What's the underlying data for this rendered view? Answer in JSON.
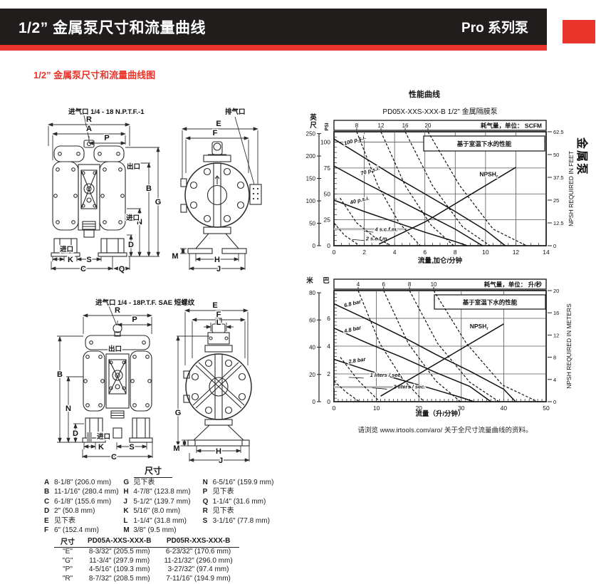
{
  "header": {
    "title_left": "1/2” 金属泵尺寸和流量曲线",
    "title_right": "Pro 系列泵"
  },
  "side_tab": {
    "label": "金属泵"
  },
  "page": {
    "section_heading": "1/2” 金属泵尺寸和流量曲线图"
  },
  "accent_colors": {
    "red": "#e8342a",
    "black_bar": "#211d1d"
  },
  "drawings": {
    "air_inlet_npt": "进气口 1/4 - 18 N.P.T.F.-1",
    "air_inlet_sae": "进气口 1/4 - 18P.T.F. SAE 短螺纹",
    "exhaust": "排气口",
    "outlet": "出口",
    "inlet": "进口",
    "letters": {
      "A": "A",
      "B": "B",
      "C": "C",
      "D": "D",
      "E": "E",
      "F": "F",
      "G": "G",
      "H": "H",
      "J": "J",
      "K": "K",
      "L": "L",
      "M": "M",
      "N": "N",
      "P": "P",
      "Q": "Q",
      "R": "R",
      "S": "S"
    }
  },
  "chart_data": [
    {
      "type": "line",
      "title": "性能曲线",
      "subtitle": "PD05X-XXS-XXX-B  1/2” 金属隔膜泵",
      "legend": "基于室温下水的性能",
      "x_axis": {
        "label": "流量,加仑/分钟",
        "min": 0,
        "max": 14,
        "ticks": [
          0,
          2,
          4,
          6,
          8,
          10,
          12,
          14
        ]
      },
      "y_left": {
        "label": "PSI",
        "min": 0,
        "max": 110,
        "ticks": [
          0,
          25,
          50,
          75,
          100
        ]
      },
      "y_outer": {
        "label": "英尺",
        "ticks": [
          0,
          50,
          100,
          150,
          200,
          250
        ],
        "per_main": 2.31
      },
      "y_right": {
        "label": "NPSH REQUIRED IN FEET",
        "min": 0,
        "max": 62.5,
        "ticks": [
          0,
          12.5,
          25,
          37.5,
          50,
          62.5
        ]
      },
      "top_axis": {
        "label": "耗气量，单位： SCFM",
        "ticks": [
          8,
          12,
          16,
          20
        ],
        "tick_x": [
          1.5,
          3.1,
          4.7,
          6.2
        ]
      },
      "ref_line": {
        "y": 16,
        "x0": 0,
        "x1": 4.8
      },
      "series": [
        {
          "id": "p100",
          "label": "100 p.s.i.",
          "style": "solid",
          "points": [
            [
              0,
              103
            ],
            [
              2,
              85
            ],
            [
              4,
              67
            ],
            [
              6,
              50
            ],
            [
              8,
              33
            ],
            [
              10,
              15
            ],
            [
              11.3,
              0
            ]
          ],
          "label_at": [
            0.7,
            97
          ]
        },
        {
          "id": "p70",
          "label": "70 p.s.i.",
          "style": "solid",
          "points": [
            [
              0,
              77
            ],
            [
              2,
              61
            ],
            [
              4,
              46
            ],
            [
              6,
              31
            ],
            [
              8,
              16
            ],
            [
              9.8,
              0
            ]
          ],
          "label_at": [
            1.8,
            68
          ]
        },
        {
          "id": "p40",
          "label": "40 p.s.i.",
          "style": "solid",
          "points": [
            [
              0,
              44
            ],
            [
              2,
              33
            ],
            [
              4,
              23
            ],
            [
              6,
              13
            ],
            [
              8,
              4
            ],
            [
              8.8,
              0
            ]
          ],
          "label_at": [
            1.1,
            40
          ]
        },
        {
          "id": "scfm2",
          "label": "2 s.c.f.m.",
          "style": "dashed",
          "points": [
            [
              0,
              22
            ],
            [
              0.7,
              10
            ],
            [
              1.7,
              0
            ]
          ],
          "label_at": [
            2.1,
            5
          ],
          "leader": [
            [
              2.0,
              5
            ],
            [
              1.2,
              6
            ]
          ]
        },
        {
          "id": "scfm4",
          "label": "4 s.c.f.m.",
          "style": "dashed",
          "points": [
            [
              0.4,
              46
            ],
            [
              1.5,
              22
            ],
            [
              2.7,
              8
            ],
            [
              3.8,
              0
            ]
          ],
          "label_at": [
            2.7,
            14
          ],
          "leader": [
            [
              2.6,
              13
            ],
            [
              2.0,
              14
            ]
          ]
        },
        {
          "id": "scfm8",
          "style": "dashed",
          "points": [
            [
              1.5,
              110
            ],
            [
              2.9,
              58
            ],
            [
              4.3,
              22
            ],
            [
              5.7,
              0
            ]
          ]
        },
        {
          "id": "scfm12",
          "style": "dashed",
          "points": [
            [
              3.1,
              110
            ],
            [
              4.7,
              58
            ],
            [
              6.4,
              20
            ],
            [
              7.9,
              0
            ]
          ]
        },
        {
          "id": "scfm16",
          "style": "dashed",
          "points": [
            [
              4.7,
              110
            ],
            [
              6.5,
              58
            ],
            [
              8.5,
              18
            ],
            [
              10.3,
              0
            ]
          ]
        },
        {
          "id": "scfm20",
          "style": "dashed",
          "points": [
            [
              6.2,
              110
            ],
            [
              8.3,
              58
            ],
            [
              10.5,
              16
            ],
            [
              12.7,
              0
            ]
          ]
        },
        {
          "id": "npshr",
          "label": "NPSH",
          "sub": "r",
          "style": "solid",
          "axis": "right",
          "points": [
            [
              3,
              1
            ],
            [
              6,
              13
            ],
            [
              9,
              28
            ],
            [
              12,
              43
            ]
          ],
          "label_at": [
            9.6,
            38
          ]
        }
      ]
    },
    {
      "type": "line",
      "legend": "基于室温下水的性能",
      "x_axis": {
        "label": "流量（升/分钟）",
        "min": 0,
        "max": 50,
        "ticks": [
          0,
          10,
          20,
          30,
          40,
          50
        ]
      },
      "y_left": {
        "label": "巴",
        "min": 0,
        "max": 8,
        "ticks": [
          0,
          2,
          4,
          6
        ]
      },
      "y_outer": {
        "label": "米",
        "ticks": [
          0,
          20,
          40,
          60,
          80
        ],
        "per_main": 10.2
      },
      "y_right": {
        "label": "NPSH REQUIRED IN METERS",
        "min": 0,
        "max": 20,
        "ticks": [
          0,
          4,
          8,
          12,
          16,
          20
        ]
      },
      "top_axis": {
        "label": "耗气量，单位： 升/秒",
        "ticks": [
          4,
          6,
          8,
          10
        ],
        "tick_x": [
          5.7,
          11.7,
          17.8,
          23.5
        ]
      },
      "ref_line": {
        "y": 1.05,
        "x0": 0,
        "x1": 18
      },
      "series": [
        {
          "id": "bar68",
          "label": "6.8 bar",
          "style": "solid",
          "points": [
            [
              0,
              7.05
            ],
            [
              8,
              5.9
            ],
            [
              16,
              4.7
            ],
            [
              24,
              3.4
            ],
            [
              32,
              2.2
            ],
            [
              40,
              0.9
            ],
            [
              42.8,
              0
            ]
          ],
          "label_at": [
            2.5,
            6.8
          ]
        },
        {
          "id": "bar48",
          "label": "4.8 bar",
          "style": "solid",
          "points": [
            [
              0,
              5.3
            ],
            [
              8,
              4.2
            ],
            [
              16,
              3.2
            ],
            [
              24,
              2.1
            ],
            [
              32,
              1.1
            ],
            [
              37,
              0
            ]
          ],
          "label_at": [
            2.5,
            4.95
          ]
        },
        {
          "id": "bar28",
          "label": "2.8 bar",
          "style": "solid",
          "points": [
            [
              0,
              3.05
            ],
            [
              8,
              2.25
            ],
            [
              16,
              1.55
            ],
            [
              24,
              0.85
            ],
            [
              30,
              0.3
            ],
            [
              33,
              0
            ]
          ],
          "label_at": [
            3.5,
            2.75
          ]
        },
        {
          "id": "ls1",
          "label": "1 liters / sec.",
          "style": "dashed",
          "points": [
            [
              0,
              1.5
            ],
            [
              2.8,
              0.7
            ],
            [
              6,
              0
            ]
          ],
          "label_at": [
            8.5,
            1.8
          ],
          "leader": [
            [
              7,
              1.7
            ],
            [
              3.5,
              1.75
            ]
          ]
        },
        {
          "id": "ls2",
          "label": "2 liters / sec.",
          "style": "dashed",
          "points": [
            [
              1.5,
              3.2
            ],
            [
              5.8,
              1.5
            ],
            [
              10.8,
              0
            ]
          ],
          "label_at": [
            14,
            0.95
          ],
          "leader": [
            [
              12.5,
              0.9
            ],
            [
              9,
              1.0
            ]
          ]
        },
        {
          "id": "ls4",
          "style": "dashed",
          "points": [
            [
              5.7,
              8
            ],
            [
              10.8,
              4.2
            ],
            [
              16,
              1.7
            ],
            [
              21.2,
              0
            ]
          ]
        },
        {
          "id": "ls6",
          "style": "dashed",
          "points": [
            [
              11.7,
              8
            ],
            [
              17.5,
              4.2
            ],
            [
              24,
              1.5
            ],
            [
              29.8,
              0
            ]
          ]
        },
        {
          "id": "ls8",
          "style": "dashed",
          "points": [
            [
              17.8,
              8
            ],
            [
              24.4,
              4.2
            ],
            [
              32,
              1.4
            ],
            [
              38.9,
              0
            ]
          ]
        },
        {
          "id": "ls10",
          "style": "dashed",
          "points": [
            [
              23.5,
              8
            ],
            [
              31.2,
              4.2
            ],
            [
              39.7,
              1.2
            ],
            [
              48,
              0
            ]
          ]
        },
        {
          "id": "npshr",
          "label": "NPSH",
          "sub": "r",
          "style": "solid",
          "axis": "right",
          "points": [
            [
              11,
              1
            ],
            [
              20,
              5
            ],
            [
              30,
              9.5
            ],
            [
              40,
              14
            ]
          ],
          "label_at": [
            32,
            13.2
          ]
        }
      ]
    }
  ],
  "note": "请浏览 www.irtools.com/aro/ 关于全尺寸流量曲线的资料。",
  "dims_list": {
    "title": "尺寸",
    "columns": [
      [
        {
          "k": "A",
          "v": "8-1/8\" (206.0 mm)"
        },
        {
          "k": "B",
          "v": "11-1/16\" (280.4 mm)"
        },
        {
          "k": "C",
          "v": "6-1/8\" (155.6 mm)"
        },
        {
          "k": "D",
          "v": "2\" (50.8 mm)"
        },
        {
          "k": "E",
          "v": "见下表"
        },
        {
          "k": "F",
          "v": "6\" (152.4 mm)"
        }
      ],
      [
        {
          "k": "G",
          "v": "见下表"
        },
        {
          "k": "H",
          "v": "4-7/8\" (123.8 mm)"
        },
        {
          "k": "J",
          "v": "5-1/2\" (139.7 mm)"
        },
        {
          "k": "K",
          "v": "5/16\" (8.0 mm)"
        },
        {
          "k": "L",
          "v": "1-1/4\" (31.8 mm)"
        },
        {
          "k": "M",
          "v": "3/8\" (9.5 mm)"
        }
      ],
      [
        {
          "k": "N",
          "v": "6-5/16\" (159.9 mm)"
        },
        {
          "k": "P",
          "v": "见下表"
        },
        {
          "k": "Q",
          "v": "1-1/4\" (31.6 mm)"
        },
        {
          "k": "R",
          "v": "见下表"
        },
        {
          "k": "S",
          "v": "3-1/16\" (77.8 mm)"
        }
      ]
    ]
  },
  "size_table": {
    "headers": [
      "尺寸",
      "PD05A-XXS-XXX-B",
      "PD05R-XXS-XXX-B"
    ],
    "rows": [
      {
        "dim": "\"E\"",
        "a": "8-3/32\" (205.5 mm)",
        "b": "6-23/32\" (170.6 mm)"
      },
      {
        "dim": "\"G\"",
        "a": "11-3/4\" (297.9 mm)",
        "b": "11-21/32\" (296.0 mm)"
      },
      {
        "dim": "\"P\"",
        "a": "4-5/16\" (109.3 mm)",
        "b": "3-27/32\" (97.4 mm)"
      },
      {
        "dim": "\"R\"",
        "a": "8-7/32\" (208.5 mm)",
        "b": "7-11/16\" (194.9 mm)"
      }
    ]
  }
}
